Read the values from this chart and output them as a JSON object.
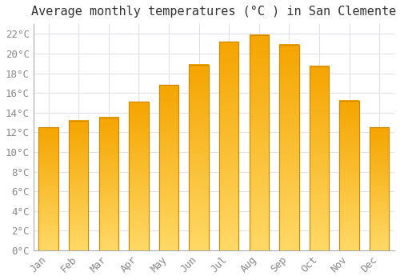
{
  "title": "Average monthly temperatures (°C ) in San Clemente",
  "months": [
    "Jan",
    "Feb",
    "Mar",
    "Apr",
    "May",
    "Jun",
    "Jul",
    "Aug",
    "Sep",
    "Oct",
    "Nov",
    "Dec"
  ],
  "values": [
    12.5,
    13.2,
    13.5,
    15.1,
    16.8,
    18.9,
    21.2,
    21.9,
    20.9,
    18.7,
    15.2,
    12.5
  ],
  "bar_color_top": "#FFD966",
  "bar_color_bottom": "#F5A500",
  "bar_edge_color": "#CC8800",
  "ylim": [
    0,
    23
  ],
  "ytick_step": 2,
  "background_color": "#FFFFFF",
  "plot_bg_color": "#FFFFFF",
  "grid_color": "#E0E0E8",
  "title_fontsize": 11,
  "tick_fontsize": 9,
  "font_family": "monospace",
  "tick_color": "#888888",
  "title_color": "#333333",
  "bar_width": 0.65
}
